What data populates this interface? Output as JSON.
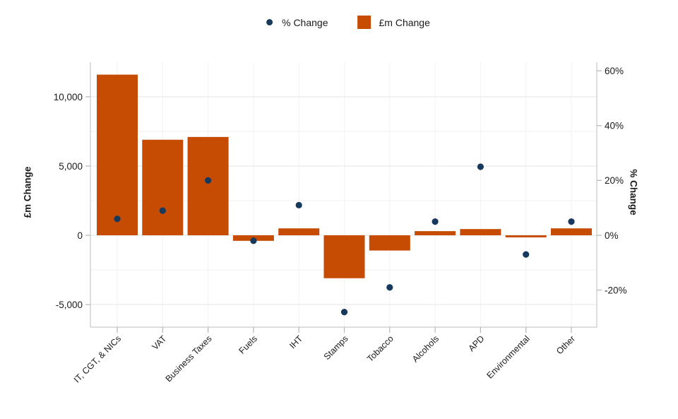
{
  "colors": {
    "bar": "#C64B03",
    "point": "#17395C",
    "axis_line": "#C9C9C9",
    "tick_mark": "#B5B5B5",
    "grid_major": "#E6E6E6",
    "grid_minor": "#F2F2F2",
    "text": "#1a1a1a"
  },
  "chart_data": {
    "type": "bar",
    "subtype": "dual-axis-bar-and-scatter",
    "title": "",
    "categories": [
      "IT, CGT, & NICs",
      "VAT",
      "Business Taxes",
      "Fuels",
      "IHT",
      "Stamps",
      "Tobacco",
      "Alcohols",
      "APD",
      "Environmental",
      "Other"
    ],
    "series": [
      {
        "name": "£m Change",
        "type": "bar",
        "axis": "left",
        "values": [
          11600,
          6900,
          7100,
          -400,
          500,
          -3100,
          -1100,
          300,
          450,
          -150,
          500
        ]
      },
      {
        "name": "% Change",
        "type": "scatter",
        "axis": "right",
        "values": [
          6,
          9,
          20,
          -2,
          11,
          -28,
          -19,
          5,
          25,
          -7,
          5
        ]
      }
    ],
    "left_axis": {
      "label": "£m Change",
      "ticks": [
        10000,
        5000,
        0,
        -5000
      ],
      "tick_labels": [
        "10,000",
        "5,000",
        "0",
        "-5,000"
      ],
      "range": [
        -6700,
        12700
      ],
      "grid_min": -5000,
      "grid_max": 10000,
      "grid_step": 2500
    },
    "right_axis": {
      "label": "% Change",
      "ticks": [
        60,
        40,
        20,
        0,
        -20
      ],
      "tick_labels": [
        "60%",
        "40%",
        "20%",
        "0%",
        "-20%"
      ],
      "range": [
        -33.5,
        63.5
      ]
    },
    "legend": {
      "position": "top-center",
      "entries": [
        "% Change",
        "£m Change"
      ]
    },
    "grid": true
  }
}
